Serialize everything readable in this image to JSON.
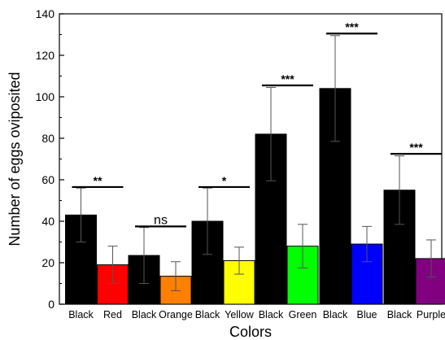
{
  "chart_data": {
    "type": "bar",
    "xlabel": "Colors",
    "ylabel": "Number of eggs oviposited",
    "ylim": [
      0,
      140
    ],
    "yticks": [
      0,
      20,
      40,
      60,
      80,
      100,
      120,
      140
    ],
    "grid": false,
    "legend": "none",
    "bars": [
      {
        "label": "Black",
        "value": 43,
        "error": 13,
        "color": "#000000"
      },
      {
        "label": "Red",
        "value": 19,
        "error": 9,
        "color": "#ff0000"
      },
      {
        "label": "Black",
        "value": 23.5,
        "error": 13.5,
        "color": "#000000"
      },
      {
        "label": "Orange",
        "value": 13.5,
        "error": 7,
        "color": "#ff8000"
      },
      {
        "label": "Black",
        "value": 40,
        "error": 16,
        "color": "#000000"
      },
      {
        "label": "Yellow",
        "value": 21,
        "error": 6.5,
        "color": "#ffff00"
      },
      {
        "label": "Black",
        "value": 82,
        "error": 22.5,
        "color": "#000000"
      },
      {
        "label": "Green",
        "value": 28,
        "error": 10.5,
        "color": "#00ff00"
      },
      {
        "label": "Black",
        "value": 104,
        "error": 25.5,
        "color": "#000000"
      },
      {
        "label": "Blue",
        "value": 29,
        "error": 8.5,
        "color": "#0000ff"
      },
      {
        "label": "Black",
        "value": 55,
        "error": 16.5,
        "color": "#000000"
      },
      {
        "label": "Purple",
        "value": 22,
        "error": 9,
        "color": "#800080"
      }
    ],
    "significance": [
      {
        "pair": [
          0,
          1
        ],
        "label": "**",
        "y": 56.5
      },
      {
        "pair": [
          2,
          3
        ],
        "label": "ns",
        "y": 37.5
      },
      {
        "pair": [
          4,
          5
        ],
        "label": "*",
        "y": 56.5
      },
      {
        "pair": [
          6,
          7
        ],
        "label": "***",
        "y": 105.5
      },
      {
        "pair": [
          8,
          9
        ],
        "label": "***",
        "y": 130.5
      },
      {
        "pair": [
          10,
          11
        ],
        "label": "***",
        "y": 72.5
      }
    ]
  }
}
